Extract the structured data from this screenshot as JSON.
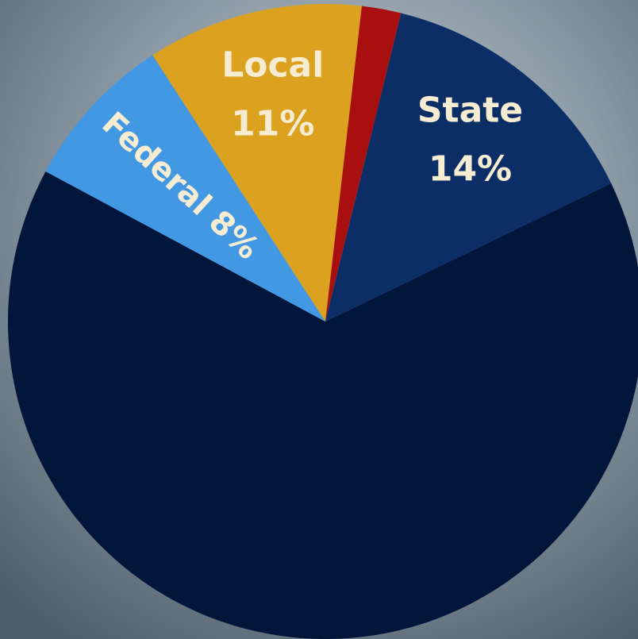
{
  "chart_data": {
    "type": "pie",
    "categories": [
      "Local",
      null,
      "State",
      null,
      "Federal"
    ],
    "values": [
      11,
      2,
      14,
      65,
      8
    ],
    "value_labels": [
      "11%",
      null,
      "14%",
      null,
      "8%"
    ],
    "colors": [
      "#dba11f",
      "#a90f0f",
      "#0c2e66",
      "#02163b",
      "#4398e4"
    ]
  }
}
